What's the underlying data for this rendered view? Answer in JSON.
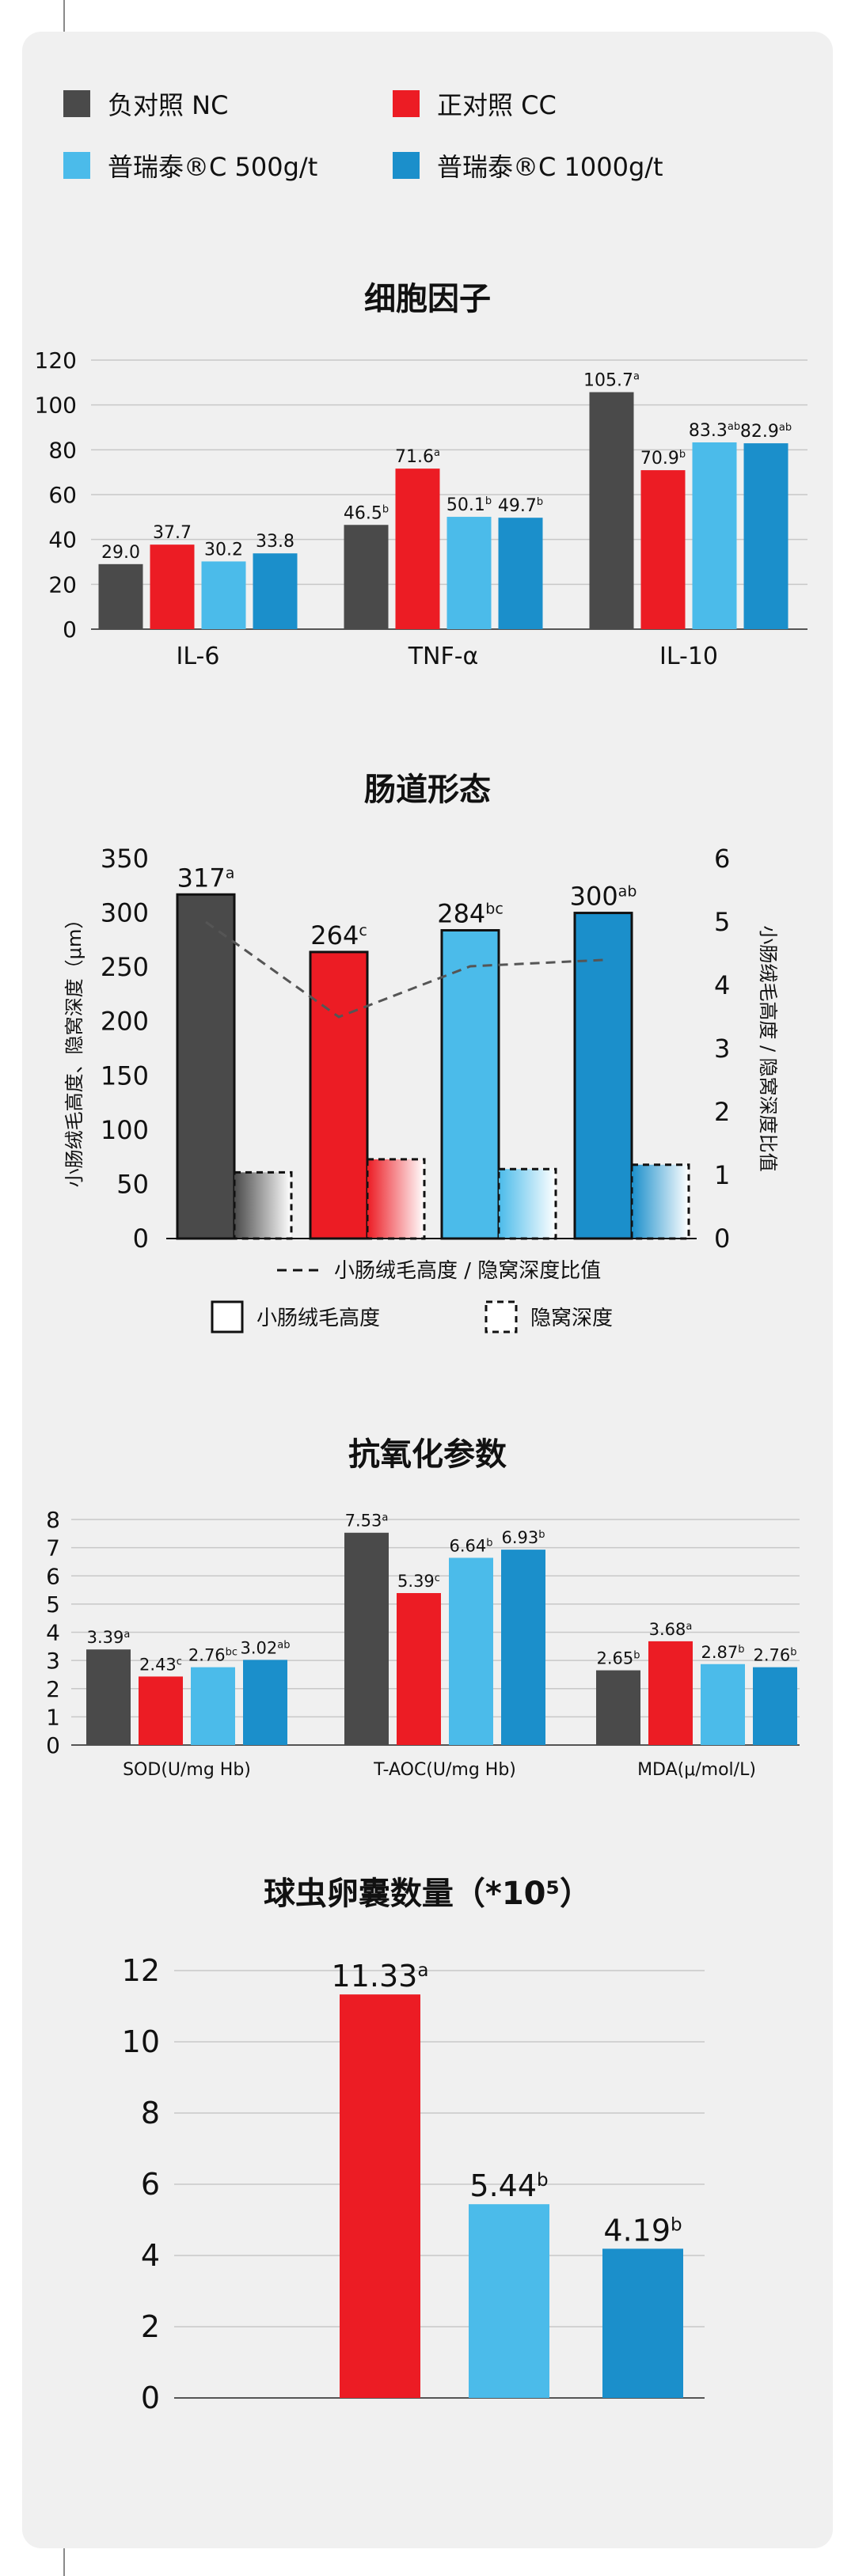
{
  "colors": {
    "nc": "#4a4a4a",
    "cc": "#ec1c24",
    "c500": "#4bbbea",
    "c1000": "#1b8fcb",
    "grid": "#c8c8c8"
  },
  "legend": {
    "items": [
      {
        "label": "负对照 NC",
        "color": "#4a4a4a"
      },
      {
        "label": "正对照 CC",
        "color": "#ec1c24"
      },
      {
        "label": "普瑞泰®C 500g/t",
        "color": "#4bbbea"
      },
      {
        "label": "普瑞泰®C 1000g/t",
        "color": "#1b8fcb"
      }
    ]
  },
  "chart_data": [
    {
      "type": "bar",
      "title": "细胞因子",
      "categories": [
        "IL-6",
        "TNF-α",
        "IL-10"
      ],
      "ylim": [
        0,
        120
      ],
      "yticks": [
        0,
        20,
        40,
        60,
        80,
        100,
        120
      ],
      "series": [
        {
          "name": "负对照 NC",
          "values": [
            29.0,
            46.5,
            105.7
          ],
          "labels": [
            "29.0",
            "46.5",
            "105.7"
          ],
          "sup": [
            "",
            "b",
            "a"
          ]
        },
        {
          "name": "正对照 CC",
          "values": [
            37.7,
            71.6,
            70.9
          ],
          "labels": [
            "37.7",
            "71.6",
            "70.9"
          ],
          "sup": [
            "",
            "a",
            "b"
          ]
        },
        {
          "name": "普瑞泰®C 500g/t",
          "values": [
            30.2,
            50.1,
            83.3
          ],
          "labels": [
            "30.2",
            "50.1",
            "83.3"
          ],
          "sup": [
            "",
            "b",
            "ab"
          ]
        },
        {
          "name": "普瑞泰®C 1000g/t",
          "values": [
            33.8,
            49.7,
            82.9
          ],
          "labels": [
            "33.8",
            "49.7",
            "82.9"
          ],
          "sup": [
            "",
            "b",
            "ab"
          ]
        }
      ]
    },
    {
      "type": "bar",
      "title": "肠道形态",
      "ylabel": "小肠绒毛高度、隐窝深度（μm）",
      "y2label": "小肠绒毛高度 / 隐窝深度比值",
      "ylim": [
        0,
        350
      ],
      "yticks": [
        0,
        50,
        100,
        150,
        200,
        250,
        300,
        350
      ],
      "y2lim": [
        0,
        6
      ],
      "y2ticks": [
        0,
        1,
        2,
        3,
        4,
        5,
        6
      ],
      "groups": [
        "负对照 NC",
        "正对照 CC",
        "普瑞泰®C 500g/t",
        "普瑞泰®C 1000g/t"
      ],
      "villus": [
        317,
        264,
        284,
        300
      ],
      "villus_labels": [
        "317",
        "264",
        "284",
        "300"
      ],
      "villus_sup": [
        "a",
        "c",
        "bc",
        "ab"
      ],
      "crypt": [
        61,
        73,
        64,
        68
      ],
      "ratio": [
        5.0,
        3.5,
        4.3,
        4.4
      ],
      "line_legend": "小肠绒毛高度 / 隐窝深度比值",
      "solid_legend": "小肠绒毛高度",
      "dashed_legend": "隐窝深度"
    },
    {
      "type": "bar",
      "title": "抗氧化参数",
      "categories": [
        "SOD(U/mg Hb)",
        "T-AOC(U/mg Hb)",
        "MDA(μ/mol/L)"
      ],
      "ylim": [
        0,
        8
      ],
      "yticks": [
        0,
        1,
        2,
        3,
        4,
        5,
        6,
        7,
        8
      ],
      "series": [
        {
          "name": "负对照 NC",
          "values": [
            3.39,
            7.53,
            2.65
          ],
          "labels": [
            "3.39",
            "7.53",
            "2.65"
          ],
          "sup": [
            "a",
            "a",
            "b"
          ]
        },
        {
          "name": "正对照 CC",
          "values": [
            2.43,
            5.39,
            3.68
          ],
          "labels": [
            "2.43",
            "5.39",
            "3.68"
          ],
          "sup": [
            "c",
            "c",
            "a"
          ]
        },
        {
          "name": "普瑞泰®C 500g/t",
          "values": [
            2.76,
            6.64,
            2.87
          ],
          "labels": [
            "2.76",
            "6.64",
            "2.87"
          ],
          "sup": [
            "bc",
            "b",
            "b"
          ]
        },
        {
          "name": "普瑞泰®C 1000g/t",
          "values": [
            3.02,
            6.93,
            2.76
          ],
          "labels": [
            "3.02",
            "6.93",
            "2.76"
          ],
          "sup": [
            "ab",
            "b",
            "b"
          ]
        }
      ]
    },
    {
      "type": "bar",
      "title": "球虫卵囊数量（*10⁵）",
      "ylim": [
        0,
        12
      ],
      "yticks": [
        0,
        2,
        4,
        6,
        8,
        10,
        12
      ],
      "groups": [
        "正对照 CC",
        "普瑞泰®C 500g/t",
        "普瑞泰®C 1000g/t"
      ],
      "values": [
        11.33,
        5.44,
        4.19
      ],
      "labels": [
        "11.33",
        "5.44",
        "4.19"
      ],
      "sup": [
        "a",
        "b",
        "b"
      ]
    }
  ]
}
